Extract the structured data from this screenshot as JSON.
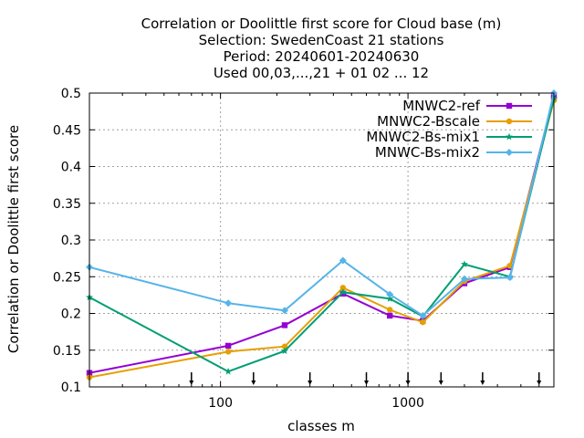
{
  "chart_data": {
    "type": "line",
    "title_lines": [
      "Correlation or Doolittle first score  for Cloud base (m)",
      "Selection: SwedenCoast     21 stations",
      "Period: 20240601-20240630",
      "Used 00,03,...,21 + 01 02 ... 12"
    ],
    "xlabel": "classes m",
    "ylabel": "Correlation or Doolittle first score",
    "xscale": "log",
    "xlim": [
      20,
      6000
    ],
    "ylim": [
      0.1,
      0.5
    ],
    "x_ticks": [
      {
        "value": 100,
        "label": "100"
      },
      {
        "value": 1000,
        "label": "1000"
      }
    ],
    "y_ticks": [
      {
        "value": 0.1,
        "label": "0.1"
      },
      {
        "value": 0.15,
        "label": "0.15"
      },
      {
        "value": 0.2,
        "label": "0.2"
      },
      {
        "value": 0.25,
        "label": "0.25"
      },
      {
        "value": 0.3,
        "label": "0.3"
      },
      {
        "value": 0.35,
        "label": "0.35"
      },
      {
        "value": 0.4,
        "label": "0.4"
      },
      {
        "value": 0.45,
        "label": "0.45"
      },
      {
        "value": 0.5,
        "label": "0.5"
      }
    ],
    "grid": true,
    "legend_position": "top-right",
    "class_boundary_arrows": [
      70,
      150,
      300,
      600,
      1000,
      1500,
      2500,
      5000
    ],
    "x": [
      20,
      110,
      220,
      450,
      800,
      1200,
      2000,
      3500,
      6000
    ],
    "series": [
      {
        "name": "MNWC2-ref",
        "color": "#9400d3",
        "marker": "square",
        "values": [
          0.119,
          0.156,
          0.184,
          0.227,
          0.197,
          0.19,
          0.241,
          0.263,
          0.495
        ]
      },
      {
        "name": "MNWC2-Bscale",
        "color": "#e69f00",
        "marker": "circle",
        "values": [
          0.113,
          0.148,
          0.155,
          0.235,
          0.205,
          0.188,
          0.244,
          0.265,
          0.49
        ]
      },
      {
        "name": "MNWC2-Bs-mix1",
        "color": "#009e73",
        "marker": "star",
        "values": [
          0.222,
          0.121,
          0.149,
          0.229,
          0.22,
          0.196,
          0.267,
          0.25,
          0.493
        ]
      },
      {
        "name": "MNWC-Bs-mix2",
        "color": "#56b4e9",
        "marker": "diamond",
        "values": [
          0.263,
          0.214,
          0.204,
          0.272,
          0.226,
          0.197,
          0.247,
          0.249,
          0.5
        ]
      }
    ]
  }
}
